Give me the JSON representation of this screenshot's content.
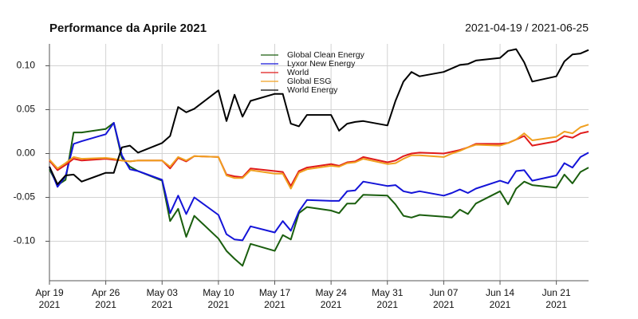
{
  "chart_data": {
    "type": "line",
    "title": "Performance da Aprile 2021",
    "subtitle": "2021-04-19 / 2021-06-25",
    "x": [
      "2021-04-19",
      "2021-04-20",
      "2021-04-21",
      "2021-04-22",
      "2021-04-23",
      "2021-04-26",
      "2021-04-27",
      "2021-04-28",
      "2021-04-29",
      "2021-04-30",
      "2021-05-03",
      "2021-05-04",
      "2021-05-05",
      "2021-05-06",
      "2021-05-07",
      "2021-05-10",
      "2021-05-11",
      "2021-05-12",
      "2021-05-13",
      "2021-05-14",
      "2021-05-17",
      "2021-05-18",
      "2021-05-19",
      "2021-05-20",
      "2021-05-21",
      "2021-05-24",
      "2021-05-25",
      "2021-05-26",
      "2021-05-27",
      "2021-05-28",
      "2021-05-31",
      "2021-06-01",
      "2021-06-02",
      "2021-06-03",
      "2021-06-04",
      "2021-06-07",
      "2021-06-08",
      "2021-06-09",
      "2021-06-10",
      "2021-06-11",
      "2021-06-14",
      "2021-06-15",
      "2021-06-16",
      "2021-06-17",
      "2021-06-18",
      "2021-06-21",
      "2021-06-22",
      "2021-06-23",
      "2021-06-24",
      "2021-06-25"
    ],
    "series": [
      {
        "name": "Global Clean Energy",
        "color": "#1a5e0e",
        "values": [
          -0.018,
          -0.036,
          -0.03,
          0.024,
          0.024,
          0.028,
          0.035,
          -0.005,
          -0.015,
          -0.02,
          -0.031,
          -0.077,
          -0.063,
          -0.095,
          -0.071,
          -0.097,
          -0.111,
          -0.12,
          -0.128,
          -0.103,
          -0.111,
          -0.093,
          -0.098,
          -0.068,
          -0.061,
          -0.065,
          -0.068,
          -0.057,
          -0.057,
          -0.047,
          -0.048,
          -0.058,
          -0.071,
          -0.073,
          -0.07,
          -0.072,
          -0.073,
          -0.064,
          -0.069,
          -0.057,
          -0.043,
          -0.058,
          -0.04,
          -0.032,
          -0.036,
          -0.039,
          -0.024,
          -0.034,
          -0.021,
          -0.016
        ]
      },
      {
        "name": "Lyxor New Energy",
        "color": "#1414d8",
        "values": [
          -0.015,
          -0.038,
          -0.026,
          0.011,
          0.014,
          0.022,
          0.035,
          -0.002,
          -0.018,
          -0.02,
          -0.03,
          -0.068,
          -0.048,
          -0.069,
          -0.05,
          -0.07,
          -0.092,
          -0.098,
          -0.099,
          -0.083,
          -0.09,
          -0.077,
          -0.088,
          -0.066,
          -0.053,
          -0.054,
          -0.054,
          -0.043,
          -0.042,
          -0.032,
          -0.037,
          -0.036,
          -0.043,
          -0.045,
          -0.043,
          -0.048,
          -0.045,
          -0.041,
          -0.045,
          -0.04,
          -0.031,
          -0.034,
          -0.02,
          -0.019,
          -0.031,
          -0.025,
          -0.011,
          -0.016,
          -0.004,
          0.001
        ]
      },
      {
        "name": "World",
        "color": "#e01a1a",
        "values": [
          -0.008,
          -0.019,
          -0.013,
          -0.006,
          -0.008,
          -0.006,
          -0.007,
          -0.008,
          -0.009,
          -0.008,
          -0.008,
          -0.017,
          -0.005,
          -0.009,
          -0.003,
          -0.004,
          -0.024,
          -0.026,
          -0.027,
          -0.017,
          -0.02,
          -0.021,
          -0.037,
          -0.02,
          -0.016,
          -0.012,
          -0.014,
          -0.01,
          -0.009,
          -0.004,
          -0.01,
          -0.008,
          -0.003,
          0.0,
          0.001,
          0.0,
          0.002,
          0.004,
          0.007,
          0.011,
          0.011,
          0.012,
          0.016,
          0.02,
          0.009,
          0.014,
          0.02,
          0.018,
          0.023,
          0.025
        ]
      },
      {
        "name": "Global ESG",
        "color": "#f0a020",
        "values": [
          -0.007,
          -0.017,
          -0.011,
          -0.004,
          -0.006,
          -0.005,
          -0.006,
          -0.008,
          -0.009,
          -0.008,
          -0.008,
          -0.015,
          -0.004,
          -0.008,
          -0.003,
          -0.004,
          -0.025,
          -0.028,
          -0.028,
          -0.019,
          -0.023,
          -0.023,
          -0.04,
          -0.022,
          -0.018,
          -0.014,
          -0.015,
          -0.011,
          -0.01,
          -0.006,
          -0.012,
          -0.011,
          -0.006,
          -0.002,
          -0.002,
          -0.004,
          0.0,
          0.003,
          0.007,
          0.01,
          0.009,
          0.012,
          0.016,
          0.023,
          0.015,
          0.019,
          0.025,
          0.023,
          0.03,
          0.033
        ]
      },
      {
        "name": "World Energy",
        "color": "#000000",
        "values": [
          -0.015,
          -0.035,
          -0.025,
          -0.024,
          -0.032,
          -0.022,
          -0.022,
          0.007,
          0.009,
          0.001,
          0.012,
          0.02,
          0.053,
          0.047,
          0.051,
          0.072,
          0.037,
          0.067,
          0.042,
          0.06,
          0.068,
          0.068,
          0.034,
          0.031,
          0.044,
          0.044,
          0.026,
          0.034,
          0.036,
          0.037,
          0.032,
          0.06,
          0.082,
          0.093,
          0.088,
          0.093,
          0.097,
          0.101,
          0.102,
          0.106,
          0.109,
          0.117,
          0.119,
          0.104,
          0.082,
          0.088,
          0.105,
          0.113,
          0.114,
          0.118
        ]
      }
    ],
    "xlim": [
      "2021-04-19",
      "2021-06-25"
    ],
    "xticks": [
      {
        "value": "2021-04-19",
        "label": [
          "Apr 19",
          "2021"
        ]
      },
      {
        "value": "2021-04-26",
        "label": [
          "Apr 26",
          "2021"
        ]
      },
      {
        "value": "2021-05-03",
        "label": [
          "May 03",
          "2021"
        ]
      },
      {
        "value": "2021-05-10",
        "label": [
          "May 10",
          "2021"
        ]
      },
      {
        "value": "2021-05-17",
        "label": [
          "May 17",
          "2021"
        ]
      },
      {
        "value": "2021-05-24",
        "label": [
          "May 24",
          "2021"
        ]
      },
      {
        "value": "2021-05-31",
        "label": [
          "May 31",
          "2021"
        ]
      },
      {
        "value": "2021-06-07",
        "label": [
          "Jun 07",
          "2021"
        ]
      },
      {
        "value": "2021-06-14",
        "label": [
          "Jun 14",
          "2021"
        ]
      },
      {
        "value": "2021-06-21",
        "label": [
          "Jun 21",
          "2021"
        ]
      }
    ],
    "ylim": [
      -0.145,
      0.125
    ],
    "yticks": [
      {
        "value": -0.1,
        "label": "-0.10"
      },
      {
        "value": -0.05,
        "label": "-0.05"
      },
      {
        "value": 0,
        "label": "0.00"
      },
      {
        "value": 0.05,
        "label": "0.05"
      },
      {
        "value": 0.1,
        "label": "0.10"
      }
    ],
    "grid": true,
    "legend": "top"
  }
}
